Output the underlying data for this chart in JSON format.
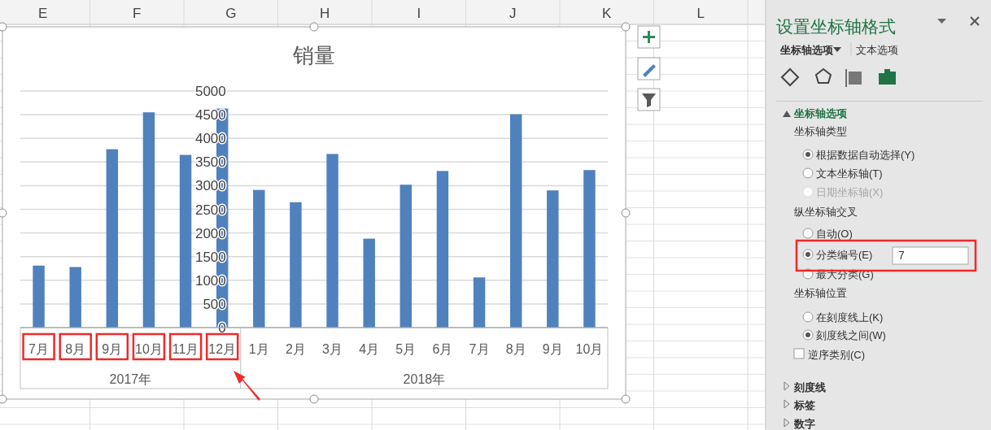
{
  "chart_data": [
    {
      "type": "bar",
      "title": "销量",
      "categories": [
        "7月",
        "8月",
        "9月",
        "10月",
        "11月",
        "12月",
        "1月",
        "2月",
        "3月",
        "4月",
        "5月",
        "6月",
        "7月",
        "8月",
        "9月",
        "10月"
      ],
      "values": [
        1310,
        1280,
        3770,
        4550,
        3650,
        4630,
        2910,
        2650,
        3670,
        1880,
        3020,
        3310,
        1060,
        4510,
        2900,
        3330
      ],
      "color": "#4f81bd",
      "ylim": [
        0,
        5000
      ],
      "yticks": [
        0,
        500,
        1000,
        1500,
        2000,
        2500,
        3000,
        3500,
        4000,
        4500,
        5000
      ],
      "grid": "y",
      "annotations": [
        "2017年",
        "2018年"
      ]
    },
    {
      "type": "other",
      "title": "设置坐标轴格式",
      "annotations": [
        "坐标轴选项",
        "文本选项",
        "坐标轴选项",
        "坐标轴类型",
        "根据数据自动选择(Y)",
        "文本坐标轴(T)",
        "日期坐标轴(X)",
        "纵坐标轴交叉",
        "自动(O)",
        "分类编号(E)",
        "7",
        "最大分类(G)",
        "坐标轴位置",
        "在刻度线上(K)",
        "刻度线之间(W)",
        "逆序类别(C)",
        "刻度线",
        "标签",
        "数字"
      ]
    },
    {
      "type": "other",
      "annotations": [
        "E",
        "F",
        "G",
        "H",
        "I",
        "J",
        "K",
        "L"
      ]
    }
  ]
}
